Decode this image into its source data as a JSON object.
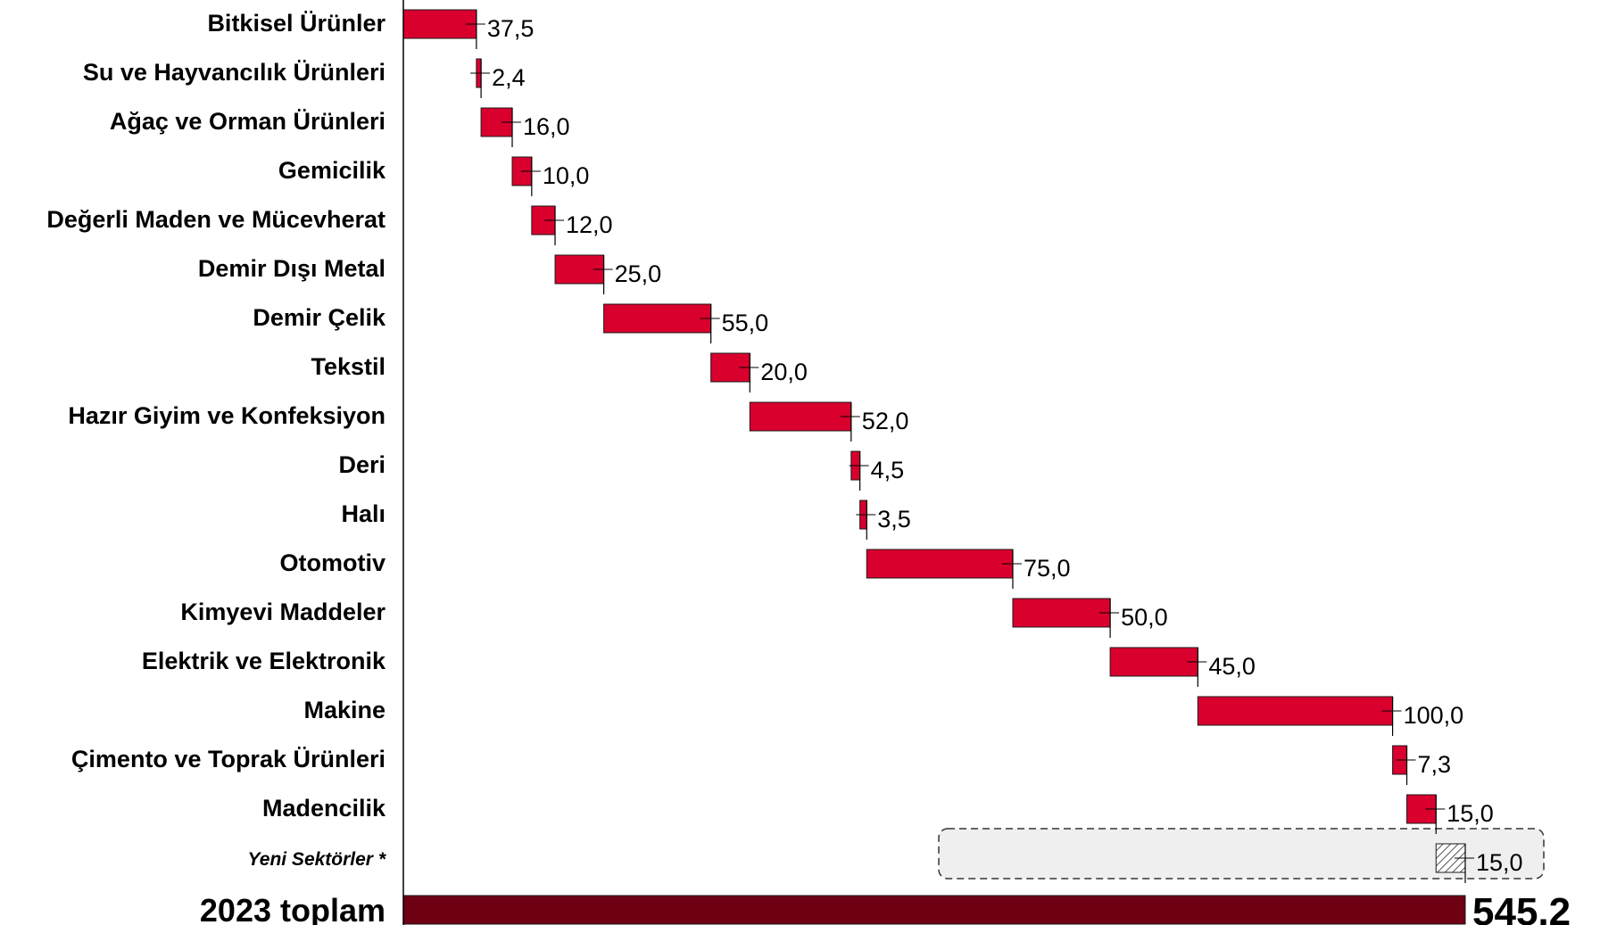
{
  "chart_data": {
    "type": "bar",
    "subtype": "waterfall-horizontal",
    "categories": [
      "Bitkisel Ürünler",
      "Su ve Hayvancılık Ürünleri",
      "Ağaç ve Orman Ürünleri",
      "Gemicilik",
      "Değerli Maden ve Mücevherat",
      "Demir Dışı Metal",
      "Demir Çelik",
      "Tekstil",
      "Hazır Giyim ve Konfeksiyon",
      "Deri",
      "Halı",
      "Otomotiv",
      "Kimyevi Maddeler",
      "Elektrik ve Elektronik",
      "Makine",
      "Çimento ve Toprak Ürünleri",
      "Madencilik",
      "Yeni Sektörler *"
    ],
    "values": [
      37.5,
      2.4,
      16.0,
      10.0,
      12.0,
      25.0,
      55.0,
      20.0,
      52.0,
      4.5,
      3.5,
      75.0,
      50.0,
      45.0,
      100.0,
      7.3,
      15.0,
      15.0
    ],
    "value_labels": [
      "37,5",
      "2,4",
      "16,0",
      "10,0",
      "12,0",
      "25,0",
      "55,0",
      "20,0",
      "52,0",
      "4,5",
      "3,5",
      "75,0",
      "50,0",
      "45,0",
      "100,0",
      "7,3",
      "15,0",
      "15,0"
    ],
    "total": {
      "label": "2023 toplam",
      "value": 545.2,
      "value_label": "545,2"
    },
    "xlim": [
      0,
      545.2
    ],
    "grid": false,
    "legend": "none",
    "colors": {
      "bar": "#d9002e",
      "bar_border": "#1a1a1a",
      "total_bar": "#6e0014",
      "hatch": "#555555",
      "new_sector_box": "#efefef"
    }
  }
}
